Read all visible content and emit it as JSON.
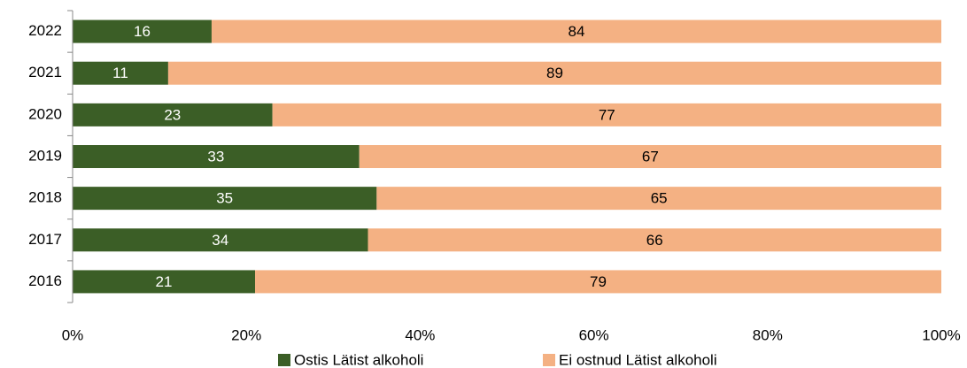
{
  "chart_data": {
    "type": "bar",
    "orientation": "horizontal",
    "stacked": true,
    "categories": [
      "2022",
      "2021",
      "2020",
      "2019",
      "2018",
      "2017",
      "2016"
    ],
    "series": [
      {
        "name": "Ostis Lätist alkoholi",
        "color": "#3b5e26",
        "values": [
          16,
          11,
          23,
          33,
          35,
          34,
          21
        ]
      },
      {
        "name": "Ei ostnud Lätist alkoholi",
        "color": "#f4b183",
        "values": [
          84,
          89,
          77,
          67,
          65,
          66,
          79
        ]
      }
    ],
    "xlim": [
      0,
      100
    ],
    "xticks": [
      {
        "value": 0,
        "label": "0%"
      },
      {
        "value": 20,
        "label": "20%"
      },
      {
        "value": 40,
        "label": "40%"
      },
      {
        "value": 60,
        "label": "60%"
      },
      {
        "value": 80,
        "label": "80%"
      },
      {
        "value": 100,
        "label": "100%"
      }
    ],
    "legend": "bottom",
    "grid": false
  }
}
